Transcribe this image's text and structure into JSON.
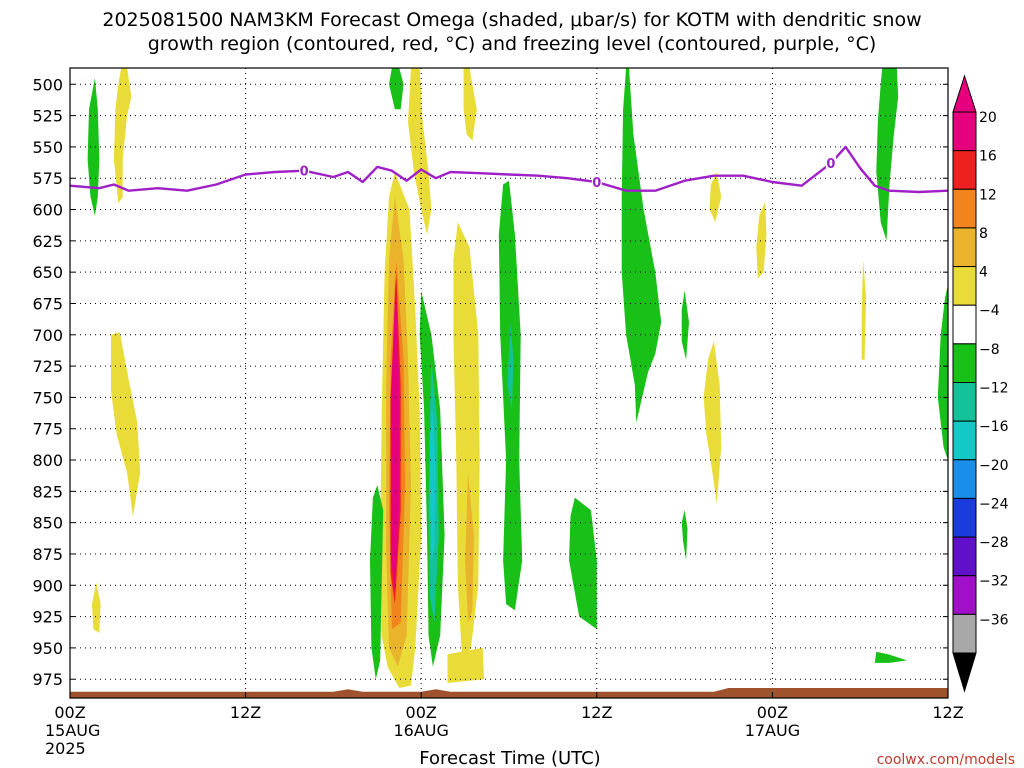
{
  "title_line1": "2025081500 NAM3KM Forecast Omega (shaded, μbar/s) for KOTM with dendritic snow",
  "title_line2": "growth region (contoured, red, °C) and freezing level (contoured, purple, °C)",
  "xlabel": "Forecast Time (UTC)",
  "credit": "coolwx.com/models",
  "chart_data": {
    "type": "heatmap",
    "x_unit": "forecast hour",
    "xlim": [
      0,
      60
    ],
    "ylim": [
      990,
      487
    ],
    "y_ticks": [
      500,
      525,
      550,
      575,
      600,
      625,
      650,
      675,
      700,
      725,
      750,
      775,
      800,
      825,
      850,
      875,
      900,
      925,
      950,
      975
    ],
    "x_ticks": [
      {
        "x": 0,
        "lines": [
          "00Z",
          "15AUG",
          "2025"
        ]
      },
      {
        "x": 12,
        "lines": [
          "12Z"
        ]
      },
      {
        "x": 24,
        "lines": [
          "00Z",
          "16AUG"
        ]
      },
      {
        "x": 36,
        "lines": [
          "12Z"
        ]
      },
      {
        "x": 48,
        "lines": [
          "00Z",
          "17AUG"
        ]
      },
      {
        "x": 60,
        "lines": [
          "12Z"
        ]
      }
    ],
    "grid": true,
    "colorbar": {
      "labels": [
        "20",
        "16",
        "12",
        "8",
        "4",
        "−4",
        "−8",
        "−12",
        "−16",
        "−20",
        "−24",
        "−28",
        "−32",
        "−36"
      ],
      "colors": [
        "#e6007e",
        "#ef2020",
        "#f2841e",
        "#e9b42c",
        "#e9dc38",
        "#ffffff",
        "#18c018",
        "#14c29a",
        "#14c8c8",
        "#1a8ee8",
        "#1a3cdc",
        "#6010c8",
        "#a010c8",
        "#a8a8a8"
      ],
      "upper_arrow_color": "#e6007e",
      "lower_arrow_color": "#000000"
    },
    "freezing_level": {
      "label": "0",
      "color": "#a020c8",
      "x": [
        0,
        2,
        3,
        4,
        6,
        8,
        10,
        12,
        14,
        16,
        18,
        19,
        20,
        21,
        22,
        23,
        24,
        25,
        26,
        28,
        30,
        32,
        34,
        36,
        38,
        40,
        42,
        44,
        46,
        48,
        50,
        52,
        53,
        54,
        55,
        56,
        58,
        60
      ],
      "y": [
        581,
        583,
        580,
        585,
        583,
        585,
        580,
        572,
        570,
        569,
        574,
        570,
        578,
        566,
        569,
        577,
        568,
        575,
        570,
        571,
        572,
        573,
        575,
        578,
        585,
        585,
        577,
        573,
        573,
        578,
        581,
        563,
        550,
        567,
        581,
        585,
        586,
        585
      ],
      "label_x": [
        16,
        36,
        52
      ]
    },
    "terrain": {
      "color": "#a0522d",
      "top_pressure": 983,
      "x": [
        0,
        18,
        19,
        20,
        24,
        25,
        26,
        28,
        44,
        45,
        60
      ],
      "y": [
        985,
        985,
        983,
        985,
        985,
        983,
        985,
        985,
        985,
        982,
        982
      ]
    },
    "omega_regions": [
      {
        "c": 6,
        "pts": [
          [
            1.7,
            495
          ],
          [
            1.9,
            520
          ],
          [
            2.0,
            560
          ],
          [
            1.9,
            590
          ],
          [
            1.7,
            605
          ],
          [
            1.4,
            590
          ],
          [
            1.2,
            560
          ],
          [
            1.3,
            520
          ]
        ]
      },
      {
        "c": 4,
        "pts": [
          [
            3.9,
            487
          ],
          [
            4.2,
            510
          ],
          [
            3.9,
            525
          ],
          [
            3.6,
            560
          ],
          [
            3.6,
            590
          ],
          [
            3.3,
            595
          ],
          [
            3.0,
            560
          ],
          [
            3.1,
            520
          ],
          [
            3.3,
            500
          ],
          [
            3.5,
            487
          ]
        ]
      },
      {
        "c": 4,
        "pts": [
          [
            2.8,
            700
          ],
          [
            3.4,
            698
          ],
          [
            4.0,
            735
          ],
          [
            4.6,
            770
          ],
          [
            4.8,
            810
          ],
          [
            4.3,
            845
          ],
          [
            3.9,
            810
          ],
          [
            3.2,
            780
          ],
          [
            2.8,
            745
          ]
        ]
      },
      {
        "c": 4,
        "pts": [
          [
            1.8,
            898
          ],
          [
            2.1,
            915
          ],
          [
            2.0,
            938
          ],
          [
            1.6,
            935
          ],
          [
            1.5,
            915
          ]
        ]
      },
      {
        "c": 6,
        "pts": [
          [
            22.5,
            487
          ],
          [
            22.8,
            500
          ],
          [
            22.6,
            520
          ],
          [
            22.2,
            520
          ],
          [
            21.8,
            500
          ],
          [
            22.0,
            487
          ]
        ]
      },
      {
        "c": 4,
        "pts": [
          [
            23.9,
            487
          ],
          [
            24.1,
            530
          ],
          [
            24.5,
            570
          ],
          [
            24.7,
            600
          ],
          [
            24.4,
            620
          ],
          [
            24.0,
            600
          ],
          [
            23.5,
            570
          ],
          [
            23.1,
            530
          ],
          [
            23.3,
            487
          ]
        ]
      },
      {
        "c": 4,
        "pts": [
          [
            27.3,
            487
          ],
          [
            27.8,
            520
          ],
          [
            27.5,
            545
          ],
          [
            27.1,
            540
          ],
          [
            26.9,
            520
          ],
          [
            26.9,
            487
          ]
        ]
      },
      {
        "c": 4,
        "pts": [
          [
            22.2,
            570
          ],
          [
            23.2,
            600
          ],
          [
            23.6,
            680
          ],
          [
            23.9,
            760
          ],
          [
            24.0,
            860
          ],
          [
            23.6,
            950
          ],
          [
            23.3,
            980
          ],
          [
            22.5,
            982
          ],
          [
            21.7,
            965
          ],
          [
            21.3,
            940
          ],
          [
            21.2,
            870
          ],
          [
            21.3,
            760
          ],
          [
            21.5,
            650
          ],
          [
            21.8,
            590
          ]
        ]
      },
      {
        "c": 3,
        "pts": [
          [
            22.2,
            590
          ],
          [
            22.8,
            640
          ],
          [
            23.1,
            720
          ],
          [
            23.3,
            820
          ],
          [
            23.0,
            940
          ],
          [
            22.4,
            965
          ],
          [
            21.8,
            950
          ],
          [
            21.6,
            870
          ],
          [
            21.6,
            740
          ],
          [
            21.8,
            640
          ]
        ]
      },
      {
        "c": 2,
        "pts": [
          [
            22.3,
            640
          ],
          [
            22.8,
            720
          ],
          [
            22.9,
            820
          ],
          [
            22.6,
            930
          ],
          [
            22.0,
            935
          ],
          [
            21.8,
            840
          ],
          [
            21.9,
            720
          ]
        ]
      },
      {
        "c": 1,
        "pts": [
          [
            22.3,
            650
          ],
          [
            22.6,
            740
          ],
          [
            22.6,
            840
          ],
          [
            22.2,
            915
          ],
          [
            21.9,
            890
          ],
          [
            21.9,
            750
          ]
        ]
      },
      {
        "c": 0,
        "pts": [
          [
            22.25,
            655
          ],
          [
            22.5,
            740
          ],
          [
            22.5,
            840
          ],
          [
            22.2,
            905
          ],
          [
            21.95,
            880
          ],
          [
            21.95,
            750
          ]
        ]
      },
      {
        "c": 6,
        "pts": [
          [
            21.0,
            820
          ],
          [
            21.4,
            840
          ],
          [
            21.3,
            900
          ],
          [
            21.2,
            960
          ],
          [
            20.9,
            975
          ],
          [
            20.6,
            950
          ],
          [
            20.5,
            880
          ],
          [
            20.7,
            830
          ]
        ]
      },
      {
        "c": 6,
        "pts": [
          [
            24.0,
            665
          ],
          [
            24.7,
            700
          ],
          [
            25.3,
            760
          ],
          [
            25.6,
            860
          ],
          [
            25.3,
            940
          ],
          [
            24.8,
            965
          ],
          [
            24.5,
            940
          ],
          [
            24.4,
            860
          ],
          [
            24.2,
            760
          ],
          [
            23.9,
            700
          ]
        ]
      },
      {
        "c": 7,
        "pts": [
          [
            24.7,
            720
          ],
          [
            25.1,
            770
          ],
          [
            25.2,
            860
          ],
          [
            24.9,
            930
          ],
          [
            24.6,
            910
          ],
          [
            24.5,
            840
          ],
          [
            24.6,
            760
          ]
        ]
      },
      {
        "c": 8,
        "pts": [
          [
            24.8,
            760
          ],
          [
            25.0,
            810
          ],
          [
            24.9,
            870
          ],
          [
            24.7,
            880
          ],
          [
            24.6,
            830
          ],
          [
            24.6,
            780
          ]
        ]
      },
      {
        "c": 4,
        "pts": [
          [
            26.5,
            610
          ],
          [
            27.3,
            630
          ],
          [
            27.9,
            700
          ],
          [
            28.0,
            800
          ],
          [
            27.9,
            900
          ],
          [
            27.4,
            950
          ],
          [
            26.8,
            960
          ],
          [
            26.5,
            900
          ],
          [
            26.4,
            800
          ],
          [
            26.2,
            700
          ],
          [
            26.2,
            640
          ]
        ]
      },
      {
        "c": 3,
        "pts": [
          [
            27.2,
            810
          ],
          [
            27.6,
            860
          ],
          [
            27.5,
            920
          ],
          [
            27.2,
            930
          ],
          [
            27.0,
            880
          ]
        ]
      },
      {
        "c": 4,
        "pts": [
          [
            25.8,
            955
          ],
          [
            28.2,
            950
          ],
          [
            28.3,
            975
          ],
          [
            25.8,
            978
          ]
        ]
      },
      {
        "c": 6,
        "pts": [
          [
            30.0,
            577
          ],
          [
            30.4,
            620
          ],
          [
            30.8,
            700
          ],
          [
            30.7,
            800
          ],
          [
            30.9,
            880
          ],
          [
            30.4,
            920
          ],
          [
            29.8,
            915
          ],
          [
            29.6,
            880
          ],
          [
            29.8,
            800
          ],
          [
            29.4,
            700
          ],
          [
            29.3,
            620
          ],
          [
            29.6,
            580
          ]
        ]
      },
      {
        "c": 7,
        "pts": [
          [
            30.1,
            690
          ],
          [
            30.3,
            720
          ],
          [
            30.2,
            760
          ],
          [
            29.9,
            740
          ]
        ]
      },
      {
        "c": 6,
        "pts": [
          [
            34.5,
            830
          ],
          [
            35.6,
            840
          ],
          [
            36.0,
            880
          ],
          [
            36.0,
            935
          ],
          [
            34.8,
            925
          ],
          [
            34.1,
            880
          ],
          [
            34.2,
            845
          ]
        ]
      },
      {
        "c": 6,
        "pts": [
          [
            38.2,
            487
          ],
          [
            38.5,
            540
          ],
          [
            39.2,
            600
          ],
          [
            40.0,
            650
          ],
          [
            40.4,
            690
          ],
          [
            40.0,
            715
          ],
          [
            39.5,
            730
          ],
          [
            38.7,
            770
          ],
          [
            38.6,
            740
          ],
          [
            38.0,
            700
          ],
          [
            37.7,
            650
          ],
          [
            37.7,
            590
          ],
          [
            37.8,
            520
          ],
          [
            38.0,
            487
          ]
        ]
      },
      {
        "c": 6,
        "pts": [
          [
            42.0,
            665
          ],
          [
            42.3,
            690
          ],
          [
            42.1,
            720
          ],
          [
            41.8,
            705
          ],
          [
            41.8,
            680
          ]
        ]
      },
      {
        "c": 6,
        "pts": [
          [
            42.0,
            840
          ],
          [
            42.2,
            855
          ],
          [
            42.1,
            880
          ],
          [
            41.9,
            865
          ],
          [
            41.8,
            850
          ]
        ]
      },
      {
        "c": 4,
        "pts": [
          [
            44.0,
            705
          ],
          [
            44.4,
            740
          ],
          [
            44.5,
            790
          ],
          [
            44.2,
            835
          ],
          [
            43.9,
            810
          ],
          [
            43.5,
            780
          ],
          [
            43.3,
            750
          ],
          [
            43.6,
            720
          ]
        ]
      },
      {
        "c": 4,
        "pts": [
          [
            44.2,
            570
          ],
          [
            44.5,
            590
          ],
          [
            44.1,
            610
          ],
          [
            43.7,
            600
          ],
          [
            43.8,
            580
          ]
        ]
      },
      {
        "c": 4,
        "pts": [
          [
            47.5,
            594
          ],
          [
            47.6,
            620
          ],
          [
            47.4,
            650
          ],
          [
            47.0,
            655
          ],
          [
            46.9,
            630
          ],
          [
            47.1,
            605
          ]
        ]
      },
      {
        "c": 4,
        "pts": [
          [
            54.2,
            640
          ],
          [
            54.4,
            670
          ],
          [
            54.3,
            720
          ],
          [
            54.1,
            720
          ],
          [
            54.1,
            680
          ]
        ]
      },
      {
        "c": 6,
        "pts": [
          [
            56.5,
            487
          ],
          [
            56.6,
            510
          ],
          [
            56.3,
            540
          ],
          [
            56.0,
            580
          ],
          [
            55.8,
            625
          ],
          [
            55.4,
            610
          ],
          [
            55.1,
            570
          ],
          [
            55.2,
            530
          ],
          [
            55.4,
            500
          ],
          [
            55.5,
            487
          ]
        ]
      },
      {
        "c": 6,
        "pts": [
          [
            55.1,
            953
          ],
          [
            55.9,
            955
          ],
          [
            57.2,
            960
          ],
          [
            56.0,
            962
          ],
          [
            55.0,
            962
          ]
        ]
      },
      {
        "c": 6,
        "pts": [
          [
            60,
            660
          ],
          [
            60,
            800
          ],
          [
            59.7,
            790
          ],
          [
            59.3,
            750
          ],
          [
            59.5,
            700
          ],
          [
            59.8,
            670
          ]
        ]
      }
    ]
  }
}
